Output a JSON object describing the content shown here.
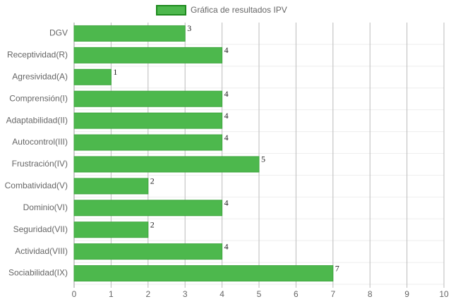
{
  "chart_data": {
    "type": "bar",
    "orientation": "horizontal",
    "categories": [
      "DGV",
      "Receptividad(R)",
      "Agresividad(A)",
      "Comprensión(I)",
      "Adaptabilidad(II)",
      "Autocontrol(III)",
      "Frustración(IV)",
      "Combatividad(V)",
      "Dominio(VI)",
      "Seguridad(VII)",
      "Actividad(VIII)",
      "Sociabilidad(IX)"
    ],
    "series": [
      {
        "name": "Gráfica de resultados IPV",
        "color": "#4db84d",
        "values": [
          3,
          4,
          1,
          4,
          4,
          4,
          5,
          2,
          4,
          2,
          4,
          7
        ]
      }
    ],
    "xlim": [
      0,
      10
    ],
    "xticks": [
      0,
      1,
      2,
      3,
      4,
      5,
      6,
      7,
      8,
      9,
      10
    ],
    "grid": true,
    "legend": "top"
  }
}
